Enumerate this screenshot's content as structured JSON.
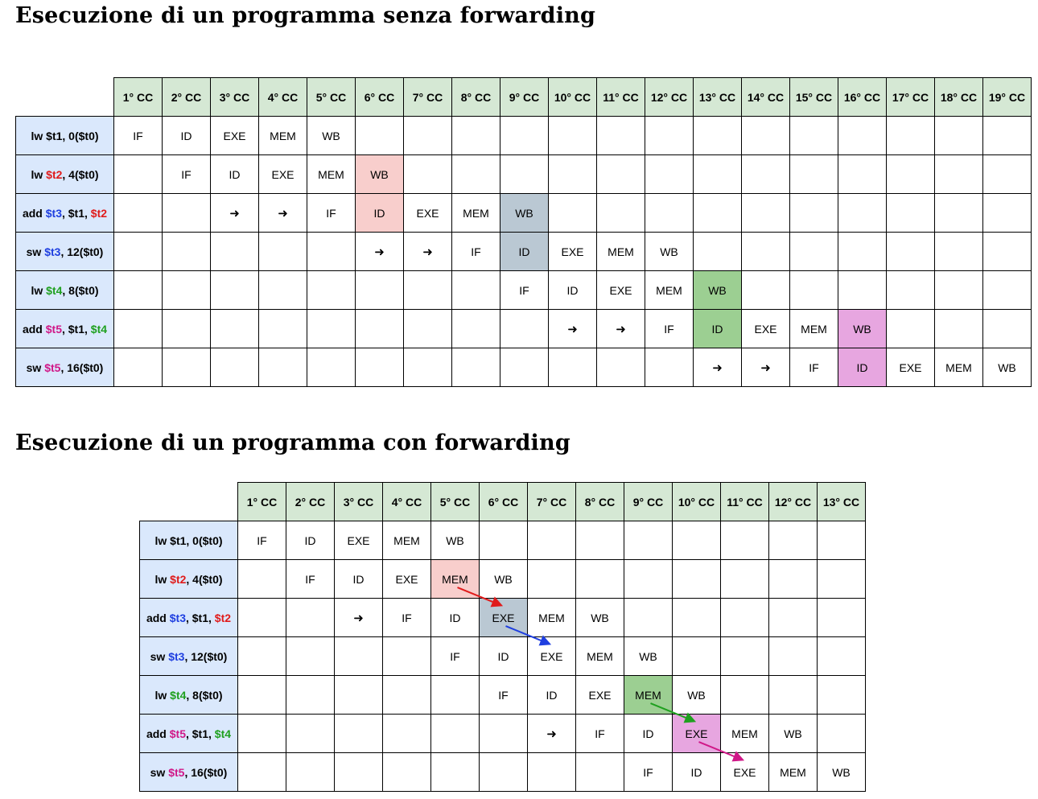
{
  "titles": {
    "without": "Esecuzione di un programma senza forwarding",
    "with": "Esecuzione di un programma con forwarding"
  },
  "colors": {
    "header_green": "#d5e8d4",
    "instr_blue": "#dae8fc",
    "pink": "#f8cecc",
    "gray_blue": "#bac8d3",
    "green": "#9ccf92",
    "magenta": "#e7a6e0",
    "reg_red": "#e01b1b",
    "reg_blue": "#1f3fe0",
    "reg_green": "#1fa01f",
    "reg_magenta": "#d01888"
  },
  "arrow_glyph": "➜",
  "instructions": [
    [
      {
        "t": "lw $t1, 0($t0)"
      }
    ],
    [
      {
        "t": "lw "
      },
      {
        "t": "$t2",
        "c": "reg_red"
      },
      {
        "t": ", 4($t0)"
      }
    ],
    [
      {
        "t": "add "
      },
      {
        "t": "$t3",
        "c": "reg_blue"
      },
      {
        "t": ", $t1, "
      },
      {
        "t": "$t2",
        "c": "reg_red"
      }
    ],
    [
      {
        "t": "sw "
      },
      {
        "t": "$t3",
        "c": "reg_blue"
      },
      {
        "t": ", 12($t0)"
      }
    ],
    [
      {
        "t": "lw "
      },
      {
        "t": "$t4",
        "c": "reg_green"
      },
      {
        "t": ", 8($t0)"
      }
    ],
    [
      {
        "t": "add "
      },
      {
        "t": "$t5",
        "c": "reg_magenta"
      },
      {
        "t": ", $t1, "
      },
      {
        "t": "$t4",
        "c": "reg_green"
      }
    ],
    [
      {
        "t": "sw "
      },
      {
        "t": "$t5",
        "c": "reg_magenta"
      },
      {
        "t": ", 16($t0)"
      }
    ]
  ],
  "without_forwarding": {
    "cycles": [
      "1° CC",
      "2° CC",
      "3° CC",
      "4° CC",
      "5° CC",
      "6° CC",
      "7° CC",
      "8° CC",
      "9° CC",
      "10° CC",
      "11° CC",
      "12° CC",
      "13° CC",
      "14° CC",
      "15° CC",
      "16° CC",
      "17° CC",
      "18° CC",
      "19° CC"
    ],
    "rows": [
      {
        "start": 0,
        "stages": [
          "IF",
          "ID",
          "EXE",
          "MEM",
          "WB"
        ]
      },
      {
        "start": 1,
        "stages": [
          "IF",
          "ID",
          "EXE",
          "MEM",
          "WB"
        ]
      },
      {
        "start": 2,
        "stages": [
          "➜",
          "➜",
          "IF",
          "ID",
          "EXE",
          "MEM",
          "WB"
        ]
      },
      {
        "start": 5,
        "stages": [
          "➜",
          "➜",
          "IF",
          "ID",
          "EXE",
          "MEM",
          "WB"
        ]
      },
      {
        "start": 8,
        "stages": [
          "IF",
          "ID",
          "EXE",
          "MEM",
          "WB"
        ]
      },
      {
        "start": 9,
        "stages": [
          "➜",
          "➜",
          "IF",
          "ID",
          "EXE",
          "MEM",
          "WB"
        ]
      },
      {
        "start": 12,
        "stages": [
          "➜",
          "➜",
          "IF",
          "ID",
          "EXE",
          "MEM",
          "WB"
        ]
      }
    ],
    "highlights": [
      {
        "row": 1,
        "col": 5,
        "color": "pink"
      },
      {
        "row": 2,
        "col": 5,
        "color": "pink"
      },
      {
        "row": 2,
        "col": 8,
        "color": "gray_blue"
      },
      {
        "row": 3,
        "col": 8,
        "color": "gray_blue"
      },
      {
        "row": 4,
        "col": 12,
        "color": "green"
      },
      {
        "row": 5,
        "col": 12,
        "color": "green"
      },
      {
        "row": 5,
        "col": 15,
        "color": "magenta"
      },
      {
        "row": 6,
        "col": 15,
        "color": "magenta"
      }
    ]
  },
  "with_forwarding": {
    "cycles": [
      "1° CC",
      "2° CC",
      "3° CC",
      "4° CC",
      "5° CC",
      "6° CC",
      "7° CC",
      "8° CC",
      "9° CC",
      "10° CC",
      "11° CC",
      "12° CC",
      "13° CC"
    ],
    "rows": [
      {
        "start": 0,
        "stages": [
          "IF",
          "ID",
          "EXE",
          "MEM",
          "WB"
        ]
      },
      {
        "start": 1,
        "stages": [
          "IF",
          "ID",
          "EXE",
          "MEM",
          "WB"
        ]
      },
      {
        "start": 2,
        "stages": [
          "➜",
          "IF",
          "ID",
          "EXE",
          "MEM",
          "WB"
        ]
      },
      {
        "start": 4,
        "stages": [
          "IF",
          "ID",
          "EXE",
          "MEM",
          "WB"
        ]
      },
      {
        "start": 5,
        "stages": [
          "IF",
          "ID",
          "EXE",
          "MEM",
          "WB"
        ]
      },
      {
        "start": 6,
        "stages": [
          "➜",
          "IF",
          "ID",
          "EXE",
          "MEM",
          "WB"
        ]
      },
      {
        "start": 8,
        "stages": [
          "IF",
          "ID",
          "EXE",
          "MEM",
          "WB"
        ]
      }
    ],
    "highlights": [
      {
        "row": 1,
        "col": 4,
        "color": "pink"
      },
      {
        "row": 2,
        "col": 5,
        "color": "gray_blue"
      },
      {
        "row": 4,
        "col": 8,
        "color": "green"
      },
      {
        "row": 5,
        "col": 9,
        "color": "magenta"
      }
    ],
    "forward_arrows": [
      {
        "from": [
          1,
          4
        ],
        "to": [
          2,
          5
        ],
        "color": "reg_red"
      },
      {
        "from": [
          2,
          5
        ],
        "to": [
          3,
          6
        ],
        "color": "reg_blue"
      },
      {
        "from": [
          4,
          8
        ],
        "to": [
          5,
          9
        ],
        "color": "reg_green"
      },
      {
        "from": [
          5,
          9
        ],
        "to": [
          6,
          10
        ],
        "color": "reg_magenta"
      }
    ]
  }
}
